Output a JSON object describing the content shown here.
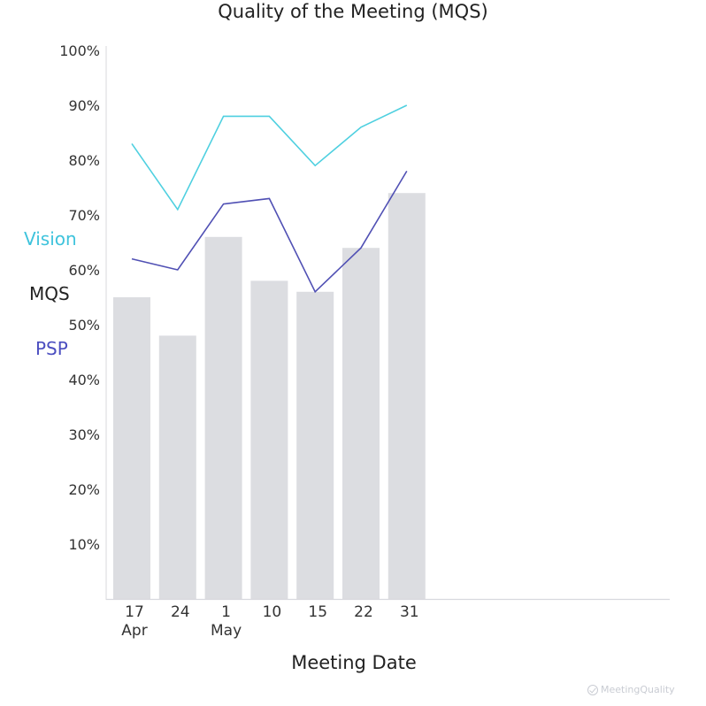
{
  "chart_data": {
    "type": "bar",
    "title": "Quality of the Meeting (MQS)",
    "xlabel": "Meeting Date",
    "ylabel": "",
    "ylim": [
      0,
      100
    ],
    "yticks": [
      "10%",
      "20%",
      "30%",
      "40%",
      "50%",
      "60%",
      "70%",
      "80%",
      "90%",
      "100%"
    ],
    "categories": [
      {
        "day": "17",
        "month": "Apr"
      },
      {
        "day": "24",
        "month": ""
      },
      {
        "day": "1",
        "month": "May"
      },
      {
        "day": "10",
        "month": ""
      },
      {
        "day": "15",
        "month": ""
      },
      {
        "day": "22",
        "month": ""
      },
      {
        "day": "31",
        "month": ""
      }
    ],
    "series": [
      {
        "name": "MQS",
        "kind": "bar",
        "color": "#dcdde1",
        "label_color": "#222222",
        "values": [
          55,
          48,
          66,
          58,
          56,
          64,
          74
        ]
      },
      {
        "name": "Vision",
        "kind": "line",
        "color": "#4fd0e0",
        "label_color": "#3ec3dc",
        "values": [
          83,
          71,
          88,
          88,
          79,
          86,
          90
        ]
      },
      {
        "name": "PSP",
        "kind": "line",
        "color": "#5050b4",
        "label_color": "#4b4ec0",
        "values": [
          62,
          60,
          72,
          73,
          56,
          64,
          78
        ]
      }
    ],
    "grid": false,
    "legend": "left of y-axis",
    "watermark": "MeetingQuality"
  }
}
